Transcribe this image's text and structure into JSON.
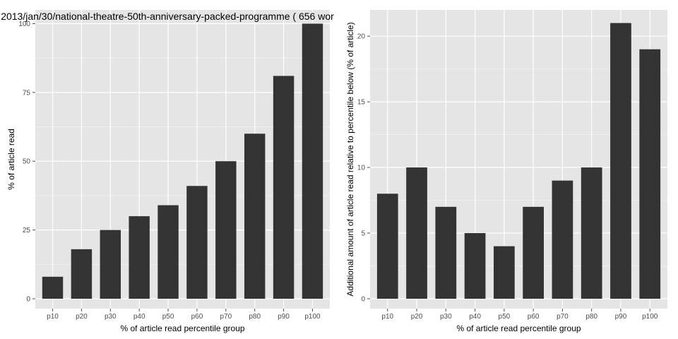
{
  "colors": {
    "panel_background": "#e5e5e5",
    "grid_major": "#ffffff",
    "grid_minor": "#f2f2f2",
    "bar_fill": "#333333",
    "tick_text": "#4d4d4d",
    "text": "#000000"
  },
  "chart_data": [
    {
      "type": "bar",
      "title": "2013/jan/30/national-theatre-50th-anniversary-packed-programme ( 656 wor",
      "xlabel": "% of article read percentile group",
      "ylabel": "% of article read",
      "categories": [
        "p10",
        "p20",
        "p30",
        "p40",
        "p50",
        "p60",
        "p70",
        "p80",
        "p90",
        "p100"
      ],
      "values": [
        8,
        18,
        25,
        30,
        34,
        41,
        50,
        60,
        81,
        100
      ],
      "ylim": [
        0,
        105
      ],
      "yticks": [
        0,
        25,
        50,
        75,
        100
      ],
      "grid": true
    },
    {
      "type": "bar",
      "title": "",
      "xlabel": "% of article read percentile group",
      "ylabel": "Additional amount of article read relative to percentile below (% of article)",
      "categories": [
        "p10",
        "p20",
        "p30",
        "p40",
        "p50",
        "p60",
        "p70",
        "p80",
        "p90",
        "p100"
      ],
      "values": [
        8,
        10,
        7,
        5,
        4,
        7,
        9,
        10,
        21,
        19
      ],
      "ylim": [
        0,
        22
      ],
      "yticks": [
        0,
        5,
        10,
        15,
        20
      ],
      "grid": true
    }
  ]
}
